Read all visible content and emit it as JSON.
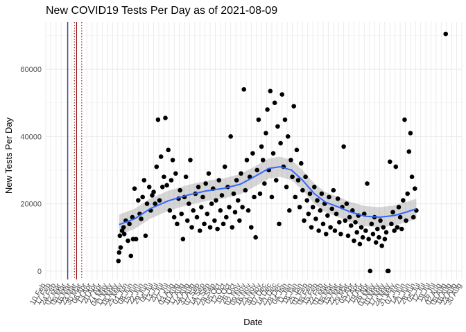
{
  "chart_data": {
    "type": "scatter",
    "title": "New COVID19 Tests Per Day as of 2021-08-09",
    "xlabel": "Date",
    "ylabel": "New Tests Per Day",
    "xlim": [
      "2020-02-10",
      "2021-08-30"
    ],
    "ylim": [
      -2500,
      74000
    ],
    "y_ticks": [
      0,
      20000,
      40000,
      60000
    ],
    "grid": true,
    "legend": "none",
    "x_tick_labels": [
      "10 Feb",
      "17 Feb",
      "24 Feb",
      "02 Mar",
      "09 Mar",
      "16 Mar",
      "23 Mar",
      "30 Mar",
      "06 Apr",
      "13 Apr",
      "20 Apr",
      "27 Apr",
      "04 May",
      "11 May",
      "18 May",
      "25 May",
      "01 Jun",
      "08 Jun",
      "15 Jun",
      "22 Jun",
      "29 Jun",
      "06 Jul",
      "13 Jul",
      "20 Jul",
      "27 Jul",
      "03 Aug",
      "10 Aug",
      "17 Aug",
      "24 Aug",
      "31 Aug",
      "07 Sep",
      "14 Sep",
      "21 Sep",
      "28 Sep",
      "05 Oct",
      "12 Oct",
      "19 Oct",
      "26 Oct",
      "02 Nov",
      "09 Nov",
      "16 Nov",
      "23 Nov",
      "30 Nov",
      "07 Dec",
      "14 Dec",
      "21 Dec",
      "28 Dec",
      "04 Jan",
      "11 Jan",
      "18 Jan",
      "25 Jan",
      "01 Feb",
      "08 Feb",
      "15 Feb",
      "22 Feb",
      "01 Mar",
      "08 Mar",
      "15 Mar",
      "22 Mar",
      "29 Mar",
      "05 Apr",
      "12 Apr",
      "19 Apr",
      "26 Apr",
      "03 May",
      "10 May",
      "17 May",
      "24 May",
      "31 May",
      "07 Jun",
      "14 Jun",
      "21 Jun",
      "28 Jun",
      "05 Jul",
      "12 Jul",
      "19 Jul",
      "26 Jul",
      "02 Aug",
      "09 Aug",
      "16 Aug",
      "23 Aug",
      "30 Aug"
    ],
    "vertical_lines": [
      {
        "date": "2020-03-11",
        "color": "#00008b",
        "style": "solid"
      },
      {
        "date": "2020-03-20",
        "color": "#8b0000",
        "style": "dotted"
      },
      {
        "date": "2020-03-23",
        "color": "#8b0000",
        "style": "solid"
      },
      {
        "date": "2020-03-30",
        "color": "#8b0000",
        "style": "dotted"
      }
    ],
    "points": [
      [
        "2020-05-19",
        3000
      ],
      [
        "2020-05-20",
        5500
      ],
      [
        "2020-05-21",
        10500
      ],
      [
        "2020-05-22",
        7000
      ],
      [
        "2020-05-24",
        12000
      ],
      [
        "2020-05-26",
        13000
      ],
      [
        "2020-05-27",
        11000
      ],
      [
        "2020-05-29",
        15000
      ],
      [
        "2020-06-01",
        9000
      ],
      [
        "2020-06-03",
        14000
      ],
      [
        "2020-06-05",
        4500
      ],
      [
        "2020-06-07",
        16000
      ],
      [
        "2020-06-08",
        9500
      ],
      [
        "2020-06-10",
        24500
      ],
      [
        "2020-06-12",
        9500
      ],
      [
        "2020-06-15",
        21000
      ],
      [
        "2020-06-17",
        17000
      ],
      [
        "2020-06-19",
        15500
      ],
      [
        "2020-06-21",
        22000
      ],
      [
        "2020-06-23",
        27000
      ],
      [
        "2020-06-25",
        10500
      ],
      [
        "2020-06-27",
        20000
      ],
      [
        "2020-06-30",
        25000
      ],
      [
        "2020-07-02",
        18000
      ],
      [
        "2020-07-04",
        22500
      ],
      [
        "2020-07-06",
        23500
      ],
      [
        "2020-07-08",
        20000
      ],
      [
        "2020-07-10",
        31000
      ],
      [
        "2020-07-12",
        45000
      ],
      [
        "2020-07-14",
        21000
      ],
      [
        "2020-07-16",
        34000
      ],
      [
        "2020-07-18",
        25000
      ],
      [
        "2020-07-20",
        28000
      ],
      [
        "2020-07-22",
        45500
      ],
      [
        "2020-07-24",
        25500
      ],
      [
        "2020-07-26",
        36000
      ],
      [
        "2020-07-28",
        18000
      ],
      [
        "2020-07-30",
        27000
      ],
      [
        "2020-08-01",
        33000
      ],
      [
        "2020-08-03",
        16000
      ],
      [
        "2020-08-05",
        29000
      ],
      [
        "2020-08-07",
        14000
      ],
      [
        "2020-08-09",
        21500
      ],
      [
        "2020-08-11",
        24000
      ],
      [
        "2020-08-13",
        17000
      ],
      [
        "2020-08-15",
        9500
      ],
      [
        "2020-08-17",
        22000
      ],
      [
        "2020-08-19",
        28000
      ],
      [
        "2020-08-21",
        15000
      ],
      [
        "2020-08-23",
        20000
      ],
      [
        "2020-08-25",
        33000
      ],
      [
        "2020-08-27",
        13000
      ],
      [
        "2020-08-29",
        18000
      ],
      [
        "2020-09-01",
        23000
      ],
      [
        "2020-09-03",
        16000
      ],
      [
        "2020-09-05",
        25000
      ],
      [
        "2020-09-07",
        12000
      ],
      [
        "2020-09-09",
        19000
      ],
      [
        "2020-09-11",
        22000
      ],
      [
        "2020-09-13",
        14000
      ],
      [
        "2020-09-15",
        26000
      ],
      [
        "2020-09-17",
        17000
      ],
      [
        "2020-09-19",
        29000
      ],
      [
        "2020-09-21",
        13000
      ],
      [
        "2020-09-23",
        20000
      ],
      [
        "2020-09-25",
        24500
      ],
      [
        "2020-09-27",
        15000
      ],
      [
        "2020-09-29",
        21000
      ],
      [
        "2020-10-01",
        12500
      ],
      [
        "2020-10-03",
        27000
      ],
      [
        "2020-10-05",
        18000
      ],
      [
        "2020-10-07",
        22500
      ],
      [
        "2020-10-09",
        14000
      ],
      [
        "2020-10-11",
        31000
      ],
      [
        "2020-10-13",
        16000
      ],
      [
        "2020-10-15",
        25000
      ],
      [
        "2020-10-17",
        19000
      ],
      [
        "2020-10-19",
        40000
      ],
      [
        "2020-10-21",
        13000
      ],
      [
        "2020-10-23",
        23000
      ],
      [
        "2020-10-25",
        17500
      ],
      [
        "2020-10-27",
        27000
      ],
      [
        "2020-10-29",
        21000
      ],
      [
        "2020-10-31",
        15000
      ],
      [
        "2020-11-02",
        29000
      ],
      [
        "2020-11-04",
        19000
      ],
      [
        "2020-11-06",
        54000
      ],
      [
        "2020-11-08",
        24000
      ],
      [
        "2020-11-10",
        33000
      ],
      [
        "2020-11-12",
        18000
      ],
      [
        "2020-11-14",
        28000
      ],
      [
        "2020-11-16",
        13000
      ],
      [
        "2020-11-18",
        35000
      ],
      [
        "2020-11-20",
        22000
      ],
      [
        "2020-11-22",
        10000
      ],
      [
        "2020-11-24",
        30000
      ],
      [
        "2020-11-26",
        45000
      ],
      [
        "2020-11-28",
        23000
      ],
      [
        "2020-11-30",
        37000
      ],
      [
        "2020-12-02",
        33000
      ],
      [
        "2020-12-04",
        26000
      ],
      [
        "2020-12-06",
        41000
      ],
      [
        "2020-12-08",
        48000
      ],
      [
        "2020-12-10",
        30000
      ],
      [
        "2020-12-12",
        53500
      ],
      [
        "2020-12-14",
        22000
      ],
      [
        "2020-12-16",
        35000
      ],
      [
        "2020-12-18",
        50000
      ],
      [
        "2020-12-20",
        27000
      ],
      [
        "2020-12-22",
        43000
      ],
      [
        "2020-12-24",
        14000
      ],
      [
        "2020-12-26",
        38000
      ],
      [
        "2020-12-28",
        52500
      ],
      [
        "2020-12-30",
        31000
      ],
      [
        "2021-01-01",
        45000
      ],
      [
        "2021-01-03",
        25000
      ],
      [
        "2021-01-05",
        40000
      ],
      [
        "2021-01-07",
        18000
      ],
      [
        "2021-01-09",
        33000
      ],
      [
        "2021-01-11",
        28000
      ],
      [
        "2021-01-13",
        49000
      ],
      [
        "2021-01-15",
        22000
      ],
      [
        "2021-01-17",
        36000
      ],
      [
        "2021-01-19",
        27000
      ],
      [
        "2021-01-21",
        19000
      ],
      [
        "2021-01-23",
        32000
      ],
      [
        "2021-01-25",
        24000
      ],
      [
        "2021-01-27",
        15000
      ],
      [
        "2021-01-29",
        28000
      ],
      [
        "2021-01-31",
        21000
      ],
      [
        "2021-02-02",
        17000
      ],
      [
        "2021-02-04",
        23000
      ],
      [
        "2021-02-06",
        13000
      ],
      [
        "2021-02-08",
        19000
      ],
      [
        "2021-02-10",
        25000
      ],
      [
        "2021-02-12",
        15500
      ],
      [
        "2021-02-14",
        21000
      ],
      [
        "2021-02-16",
        12000
      ],
      [
        "2021-02-18",
        18000
      ],
      [
        "2021-02-20",
        23000
      ],
      [
        "2021-02-22",
        14000
      ],
      [
        "2021-02-24",
        20000
      ],
      [
        "2021-02-26",
        11000
      ],
      [
        "2021-02-28",
        16500
      ],
      [
        "2021-03-02",
        22000
      ],
      [
        "2021-03-04",
        13000
      ],
      [
        "2021-03-06",
        18500
      ],
      [
        "2021-03-08",
        24000
      ],
      [
        "2021-03-10",
        12000
      ],
      [
        "2021-03-12",
        17000
      ],
      [
        "2021-03-14",
        21500
      ],
      [
        "2021-03-16",
        14500
      ],
      [
        "2021-03-18",
        11000
      ],
      [
        "2021-03-20",
        19000
      ],
      [
        "2021-03-22",
        37000
      ],
      [
        "2021-03-24",
        15000
      ],
      [
        "2021-03-26",
        20000
      ],
      [
        "2021-03-28",
        10500
      ],
      [
        "2021-03-30",
        16000
      ],
      [
        "2021-04-01",
        13500
      ],
      [
        "2021-04-03",
        18000
      ],
      [
        "2021-04-05",
        9000
      ],
      [
        "2021-04-07",
        14500
      ],
      [
        "2021-04-09",
        11500
      ],
      [
        "2021-04-11",
        16500
      ],
      [
        "2021-04-13",
        8000
      ],
      [
        "2021-04-15",
        13000
      ],
      [
        "2021-04-17",
        10000
      ],
      [
        "2021-04-19",
        17000
      ],
      [
        "2021-04-21",
        12000
      ],
      [
        "2021-04-23",
        26000
      ],
      [
        "2021-04-25",
        9500
      ],
      [
        "2021-04-27",
        0
      ],
      [
        "2021-04-29",
        14000
      ],
      [
        "2021-05-01",
        11000
      ],
      [
        "2021-05-03",
        16000
      ],
      [
        "2021-05-05",
        8500
      ],
      [
        "2021-05-07",
        12500
      ],
      [
        "2021-05-09",
        10000
      ],
      [
        "2021-05-11",
        15000
      ],
      [
        "2021-05-13",
        7500
      ],
      [
        "2021-05-15",
        13000
      ],
      [
        "2021-05-17",
        9500
      ],
      [
        "2021-05-19",
        11500
      ],
      [
        "2021-05-21",
        0
      ],
      [
        "2021-05-22",
        0
      ],
      [
        "2021-05-24",
        32500
      ],
      [
        "2021-05-26",
        14000
      ],
      [
        "2021-05-28",
        17500
      ],
      [
        "2021-05-30",
        12000
      ],
      [
        "2021-06-01",
        31000
      ],
      [
        "2021-06-03",
        13000
      ],
      [
        "2021-06-05",
        19000
      ],
      [
        "2021-06-07",
        16000
      ],
      [
        "2021-06-09",
        12500
      ],
      [
        "2021-06-11",
        21000
      ],
      [
        "2021-06-13",
        45000
      ],
      [
        "2021-06-15",
        15000
      ],
      [
        "2021-06-17",
        23000
      ],
      [
        "2021-06-19",
        35500
      ],
      [
        "2021-06-21",
        41000
      ],
      [
        "2021-06-23",
        28000
      ],
      [
        "2021-06-25",
        16000
      ],
      [
        "2021-06-27",
        24500
      ],
      [
        "2021-06-29",
        18000
      ],
      [
        "2021-08-08",
        70500
      ]
    ],
    "trend": [
      [
        "2020-05-20",
        13800
      ],
      [
        "2020-06-10",
        15500
      ],
      [
        "2020-07-01",
        18500
      ],
      [
        "2020-07-25",
        20800
      ],
      [
        "2020-08-20",
        22500
      ],
      [
        "2020-09-15",
        23800
      ],
      [
        "2020-10-10",
        24600
      ],
      [
        "2020-11-01",
        25800
      ],
      [
        "2020-11-20",
        28000
      ],
      [
        "2020-12-10",
        30500
      ],
      [
        "2020-12-25",
        31000
      ],
      [
        "2021-01-10",
        30000
      ],
      [
        "2021-01-25",
        27000
      ],
      [
        "2021-02-10",
        23000
      ],
      [
        "2021-02-25",
        20500
      ],
      [
        "2021-03-15",
        19000
      ],
      [
        "2021-04-01",
        17500
      ],
      [
        "2021-04-20",
        16300
      ],
      [
        "2021-05-10",
        16000
      ],
      [
        "2021-05-30",
        16500
      ],
      [
        "2021-06-15",
        17500
      ],
      [
        "2021-06-29",
        18500
      ]
    ],
    "trend_band": 3000,
    "colors": {
      "points": "#000000",
      "trend": "#3366ff",
      "band": "#999999",
      "grid": "#ebebeb"
    }
  }
}
